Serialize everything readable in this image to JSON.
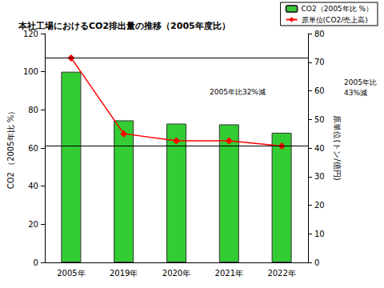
{
  "chart_data": {
    "type": "bar",
    "title": "本社工場におけるCO2排出量の推移（2005年度比）",
    "categories": [
      "2005年",
      "2019年",
      "2020年",
      "2021年",
      "2022年"
    ],
    "series": [
      {
        "name": "CO2（2005年比 %）",
        "type": "bar",
        "color": "#33cc33",
        "values": [
          100,
          74.5,
          72.8,
          72.4,
          68
        ]
      },
      {
        "name": "原単位(CO2/売上高)",
        "type": "line",
        "axis": "y2",
        "color": "#ff0000",
        "marker": "diamond",
        "line_style": "solid",
        "values": [
          71.5,
          45,
          42.5,
          42.5,
          40.7
        ]
      }
    ],
    "ylabel": "CO2 （2005年比 %）",
    "y2label": "原単位(トン/億円)",
    "ylim": [
      0,
      120
    ],
    "yticks": [
      0,
      20,
      40,
      60,
      80,
      100,
      120
    ],
    "y2lim": [
      0,
      80
    ],
    "y2ticks": [
      0,
      10,
      20,
      30,
      40,
      50,
      60,
      70,
      80
    ],
    "annotations": [
      "2005年比32%減",
      "2005年比\n43%減"
    ],
    "grid": false,
    "legend": "top-right"
  }
}
